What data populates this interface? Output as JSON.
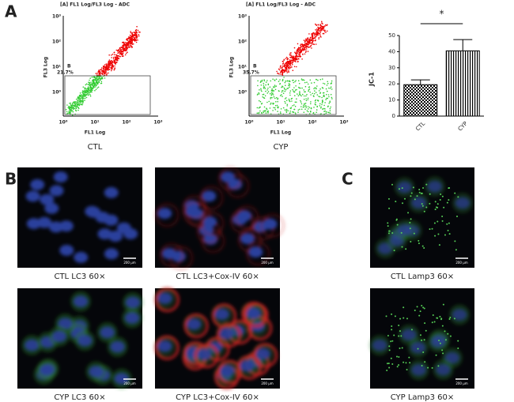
{
  "panel_labels": [
    "A",
    "B",
    "C"
  ],
  "flow_plots": [
    {
      "title": "[A] FL1 Log/FL3 Log - ADC",
      "y_label": "FL3 Log",
      "x_label": "FL1 Log",
      "x_ticks": [
        "10⁰",
        "10¹",
        "10²",
        "10³"
      ],
      "y_ticks": [
        "10⁰",
        "10¹",
        "10²",
        "10³"
      ],
      "gate": "B",
      "gate_percent": "21.7%",
      "caption": "CTL"
    },
    {
      "title": "[A] FL1 Log/FL3 Log - ADC",
      "y_label": "FL3 Log",
      "x_label": "FL1 Log",
      "x_ticks": [
        "10⁰",
        "10¹",
        "10²",
        "10³"
      ],
      "y_ticks": [
        "10⁰",
        "10¹",
        "10²",
        "10³"
      ],
      "gate": "B",
      "gate_percent": "35.7%",
      "caption": "CYP"
    }
  ],
  "chart_data": {
    "type": "bar",
    "y_label": "JC-1",
    "categories": [
      "CTL",
      "CYP"
    ],
    "values": [
      19.5,
      40.5
    ],
    "errors": [
      3,
      7
    ],
    "ylim": [
      0,
      50
    ],
    "yticks": [
      0,
      10,
      20,
      30,
      40,
      50
    ],
    "color": "#000000",
    "annotation": "*"
  },
  "micrographs": [
    {
      "caption": "CTL LC3 60×",
      "scale_bar": "200 μm"
    },
    {
      "caption": "CTL LC3+Cox-IV 60×",
      "scale_bar": "200 μm"
    },
    {
      "caption": "CYP LC3 60×",
      "scale_bar": "200 μm"
    },
    {
      "caption": "CYP LC3+Cox-IV 60×",
      "scale_bar": "200 μm"
    },
    {
      "caption": "CTL Lamp3 60×",
      "scale_bar": "200 μm"
    },
    {
      "caption": "CYP Lamp3 60×",
      "scale_bar": "200 μm"
    }
  ]
}
